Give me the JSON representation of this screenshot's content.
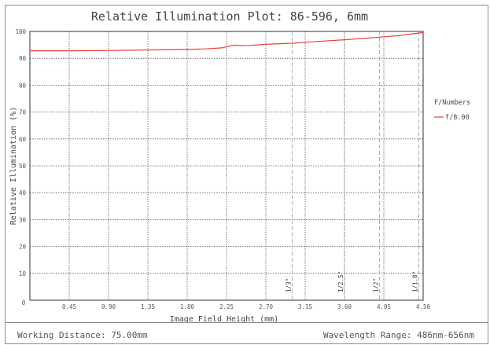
{
  "footer": {
    "working_distance": "Working Distance: 75.00mm",
    "wavelength_range": "Wavelength Range: 486nm-656nm"
  },
  "chart_data": {
    "type": "line",
    "title": "Relative Illumination Plot: 86-596, 6mm",
    "xlabel": "Image Field Height (mm)",
    "ylabel": "Relative Illumination (%)",
    "xlim": [
      0,
      4.5
    ],
    "ylim": [
      0,
      100
    ],
    "x_ticks": [
      "0.45",
      "0.90",
      "1.35",
      "1.80",
      "2.25",
      "2.70",
      "3.15",
      "3.60",
      "4.05",
      "4.50"
    ],
    "x_tick_values": [
      0.45,
      0.9,
      1.35,
      1.8,
      2.25,
      2.7,
      3.15,
      3.6,
      4.05,
      4.5
    ],
    "x_origin_label": "0",
    "y_ticks": [
      "100",
      "90",
      "80",
      "70",
      "60",
      "50",
      "40",
      "30",
      "20",
      "10"
    ],
    "y_tick_values": [
      100,
      90,
      80,
      70,
      60,
      50,
      40,
      30,
      20,
      10
    ],
    "grid": true,
    "legend": {
      "title": "F/Numbers",
      "placement": "right"
    },
    "series": [
      {
        "name": "f/8.00",
        "color": "#e8423a",
        "x": [
          0,
          0.45,
          0.9,
          1.35,
          1.8,
          2.0,
          2.2,
          2.3,
          2.35,
          2.4,
          2.5,
          2.7,
          3.0,
          3.3,
          3.6,
          3.9,
          4.2,
          4.5
        ],
        "y": [
          92.8,
          92.8,
          92.9,
          93.1,
          93.3,
          93.5,
          93.9,
          94.7,
          94.9,
          94.7,
          94.8,
          95.2,
          95.6,
          96.3,
          96.9,
          97.6,
          98.4,
          99.6
        ]
      }
    ],
    "sensor_markers": [
      {
        "label": "1/3\"",
        "x": 3.0
      },
      {
        "label": "1/2.5\"",
        "x": 3.6
      },
      {
        "label": "1/2\"",
        "x": 4.0
      },
      {
        "label": "1/1.8\"",
        "x": 4.45
      }
    ]
  }
}
